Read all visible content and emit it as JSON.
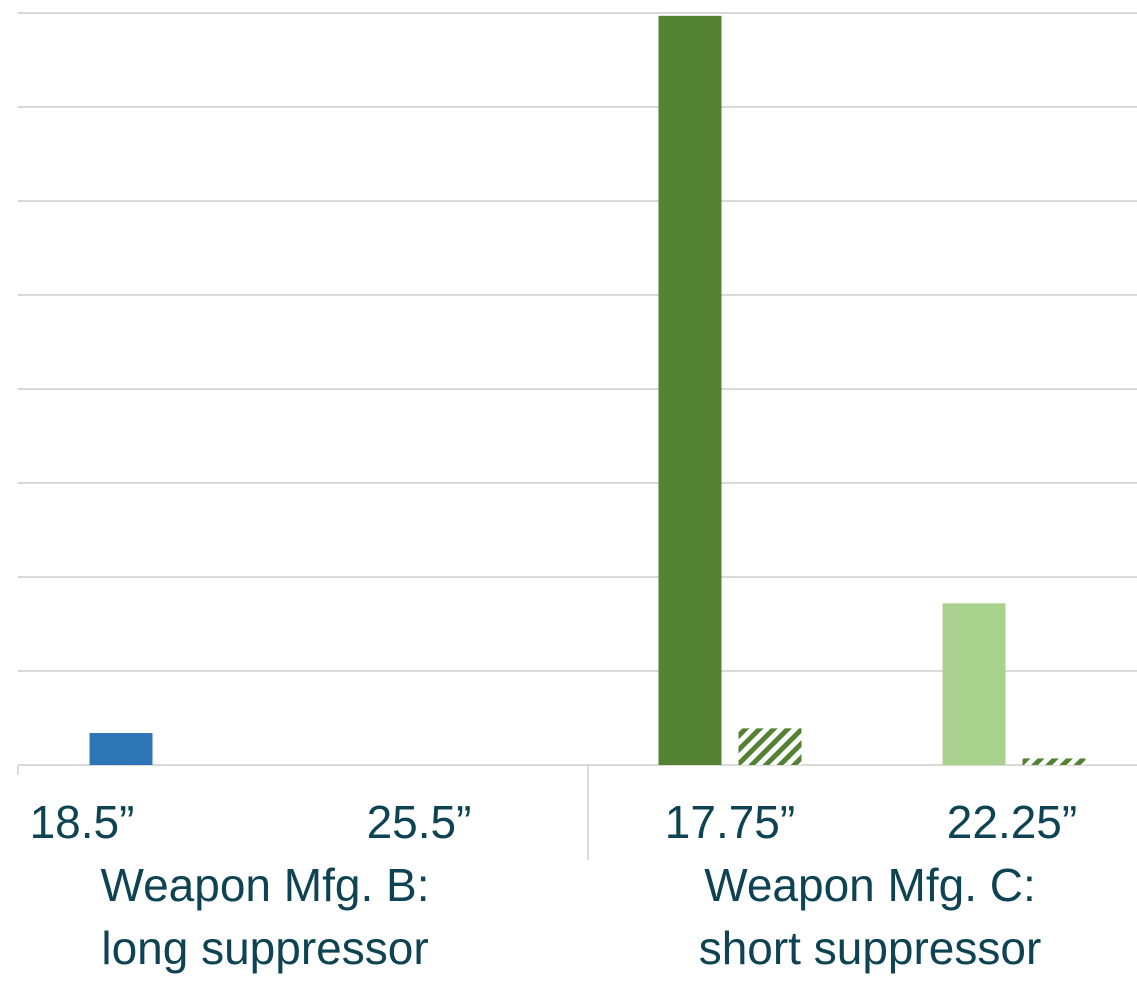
{
  "chart_data": {
    "type": "bar",
    "categories": [
      "18.5”",
      "25.5”",
      "17.75”",
      "22.25”"
    ],
    "groups": [
      {
        "label": "Weapon Mfg. B:",
        "sublabel": "long suppressor"
      },
      {
        "label": "Weapon Mfg. C:",
        "sublabel": "short suppressor"
      }
    ],
    "series": [
      {
        "values": [
          0.34,
          0,
          7.97,
          1.72
        ],
        "colors": [
          "#2e75b6",
          "#2e75b6",
          "#548235",
          "#a9d18e"
        ]
      },
      {
        "values": [
          0,
          0,
          0.39,
          0.07
        ],
        "colors": [
          "#2e75b6",
          "#2e75b6",
          "#548235",
          "#a9d18e"
        ],
        "pattern": "hatch"
      }
    ],
    "ylim": [
      0,
      8
    ],
    "yticks": [
      0,
      1,
      2,
      3,
      4,
      5,
      6,
      7,
      8
    ],
    "grid": true
  }
}
